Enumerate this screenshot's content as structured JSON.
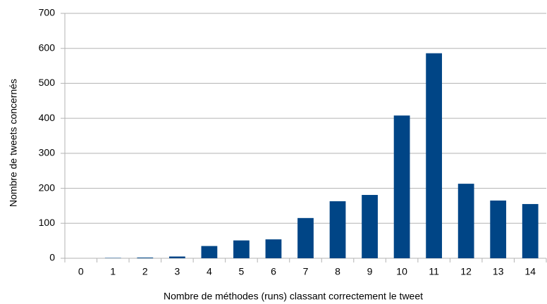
{
  "chart_data": {
    "type": "bar",
    "x_label": "Nombre de méthodes (runs) classant correctement le tweet",
    "y_label": "Nombre de tweets concernés",
    "categories": [
      "0",
      "1",
      "2",
      "3",
      "4",
      "5",
      "6",
      "7",
      "8",
      "9",
      "10",
      "11",
      "12",
      "13",
      "14"
    ],
    "values": [
      0,
      1,
      2,
      5,
      35,
      51,
      54,
      115,
      163,
      181,
      408,
      586,
      213,
      165,
      155
    ],
    "color": "#004586",
    "ylim": [
      0,
      700
    ],
    "yticks": [
      0,
      100,
      200,
      300,
      400,
      500,
      600,
      700
    ],
    "grid": true
  }
}
